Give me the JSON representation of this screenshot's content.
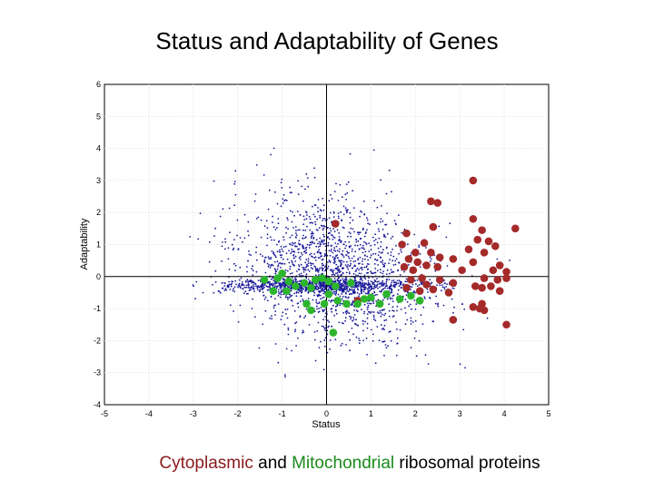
{
  "slide": {
    "title": "Status and Adaptability of Genes",
    "caption": {
      "part1": "Cytoplasmic",
      "part2": " and ",
      "part3": "Mitochondrial",
      "part4": " ribosomal proteins"
    }
  },
  "colors": {
    "cytoplasmic": "#a52a2a",
    "mitochondrial": "#2db52d",
    "genes": "#1a1a9a",
    "grid": "#d8d8d8"
  },
  "chart_data": {
    "type": "scatter",
    "title": "Status and Adaptability of Genes",
    "xlabel": "Status",
    "ylabel": "Adaptability",
    "xlim": [
      -5,
      5
    ],
    "ylim": [
      -4,
      6
    ],
    "xticks": [
      -5,
      -4,
      -3,
      -2,
      -1,
      0,
      1,
      2,
      3,
      4,
      5
    ],
    "yticks": [
      -4,
      -3,
      -2,
      -1,
      0,
      1,
      2,
      3,
      4,
      5,
      6
    ],
    "grid": true,
    "series": [
      {
        "name": "Cytoplasmic",
        "color": "#a52a2a",
        "points": [
          [
            0.2,
            1.65
          ],
          [
            3.3,
            3.0
          ],
          [
            2.35,
            2.35
          ],
          [
            2.5,
            2.3
          ],
          [
            3.3,
            1.8
          ],
          [
            1.8,
            1.35
          ],
          [
            2.4,
            1.55
          ],
          [
            3.5,
            1.45
          ],
          [
            4.25,
            1.5
          ],
          [
            1.7,
            1.0
          ],
          [
            2.2,
            1.05
          ],
          [
            3.4,
            1.15
          ],
          [
            3.65,
            1.1
          ],
          [
            2.0,
            0.75
          ],
          [
            2.35,
            0.75
          ],
          [
            3.2,
            0.85
          ],
          [
            3.55,
            0.75
          ],
          [
            3.8,
            0.95
          ],
          [
            1.85,
            0.55
          ],
          [
            2.05,
            0.45
          ],
          [
            2.55,
            0.6
          ],
          [
            2.85,
            0.55
          ],
          [
            3.3,
            0.45
          ],
          [
            1.75,
            0.3
          ],
          [
            1.95,
            0.2
          ],
          [
            2.25,
            0.35
          ],
          [
            2.5,
            0.3
          ],
          [
            3.05,
            0.2
          ],
          [
            3.9,
            0.35
          ],
          [
            4.05,
            0.15
          ],
          [
            3.75,
            0.2
          ],
          [
            1.9,
            -0.1
          ],
          [
            2.15,
            -0.05
          ],
          [
            2.55,
            -0.1
          ],
          [
            2.85,
            -0.2
          ],
          [
            3.55,
            -0.05
          ],
          [
            3.85,
            -0.1
          ],
          [
            4.05,
            -0.05
          ],
          [
            1.8,
            -0.35
          ],
          [
            2.1,
            -0.45
          ],
          [
            2.4,
            -0.4
          ],
          [
            2.75,
            -0.5
          ],
          [
            3.35,
            -0.3
          ],
          [
            3.5,
            -0.35
          ],
          [
            3.9,
            -0.45
          ],
          [
            3.7,
            -0.3
          ],
          [
            2.25,
            -0.25
          ],
          [
            3.3,
            -0.95
          ],
          [
            3.45,
            -1.0
          ],
          [
            3.5,
            -0.85
          ],
          [
            3.55,
            -1.05
          ],
          [
            2.85,
            -1.35
          ],
          [
            4.05,
            -1.5
          ],
          [
            0.7,
            -0.75
          ]
        ]
      },
      {
        "name": "Mitochondrial",
        "color": "#2db52d",
        "points": [
          [
            -1.4,
            -0.1
          ],
          [
            -1.1,
            -0.05
          ],
          [
            -1.0,
            0.1
          ],
          [
            -0.85,
            -0.15
          ],
          [
            -0.7,
            -0.3
          ],
          [
            -0.9,
            -0.45
          ],
          [
            -1.2,
            -0.45
          ],
          [
            -0.5,
            -0.2
          ],
          [
            -0.35,
            -0.35
          ],
          [
            -0.25,
            -0.1
          ],
          [
            -0.1,
            -0.05
          ],
          [
            0.05,
            -0.15
          ],
          [
            -0.45,
            -0.85
          ],
          [
            -0.35,
            -1.05
          ],
          [
            -0.05,
            -0.85
          ],
          [
            0.25,
            -0.75
          ],
          [
            0.45,
            -0.85
          ],
          [
            0.7,
            -0.85
          ],
          [
            0.85,
            -0.7
          ],
          [
            1.0,
            -0.65
          ],
          [
            1.2,
            -0.85
          ],
          [
            1.35,
            -0.55
          ],
          [
            1.65,
            -0.7
          ],
          [
            1.9,
            -0.6
          ],
          [
            2.1,
            -0.75
          ],
          [
            0.55,
            -0.2
          ],
          [
            0.2,
            -0.3
          ],
          [
            0.05,
            -0.55
          ],
          [
            0.15,
            -1.75
          ]
        ]
      },
      {
        "name": "Genes",
        "color": "#1a1a9a",
        "count": 2500
      }
    ]
  }
}
